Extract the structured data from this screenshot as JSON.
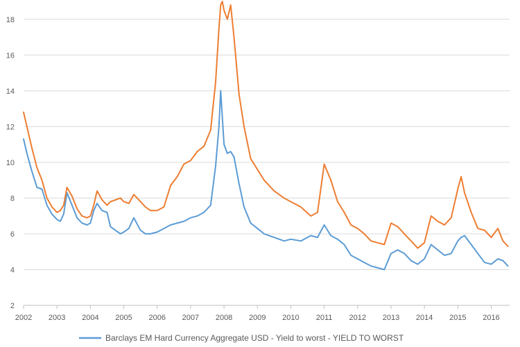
{
  "chart_data": {
    "type": "line",
    "title": "",
    "xlabel": "",
    "ylabel": "",
    "xlim": [
      2002,
      2016.55
    ],
    "ylim": [
      2,
      19
    ],
    "y_ticks": [
      2,
      4,
      6,
      8,
      10,
      12,
      14,
      16,
      18
    ],
    "x_ticks": [
      "2002",
      "2003",
      "2004",
      "2005",
      "2006",
      "2007",
      "2008",
      "2009",
      "2010",
      "2011",
      "2012",
      "2013",
      "2014",
      "2015",
      "2016"
    ],
    "grid": "horizontal",
    "legend_position": "bottom",
    "colors": {
      "blue": "#5b9bd5",
      "orange": "#ed7d31",
      "grid": "#d9d9d9",
      "axis": "#bfbfbf"
    },
    "series": [
      {
        "name": "Barclays EM Hard Currency  Aggregate USD - Yield to worst - YIELD TO WORST",
        "color": "#5b9bd5",
        "x": [
          2002.0,
          2002.1,
          2002.25,
          2002.4,
          2002.55,
          2002.7,
          2002.85,
          2003.0,
          2003.1,
          2003.2,
          2003.3,
          2003.45,
          2003.6,
          2003.75,
          2003.9,
          2004.0,
          2004.1,
          2004.2,
          2004.35,
          2004.5,
          2004.6,
          2004.75,
          2004.9,
          2005.0,
          2005.15,
          2005.3,
          2005.5,
          2005.65,
          2005.8,
          2006.0,
          2006.2,
          2006.4,
          2006.6,
          2006.8,
          2007.0,
          2007.2,
          2007.4,
          2007.6,
          2007.75,
          2007.85,
          2007.9,
          2007.95,
          2008.0,
          2008.1,
          2008.2,
          2008.3,
          2008.45,
          2008.6,
          2008.8,
          2009.0,
          2009.2,
          2009.5,
          2009.8,
          2010.0,
          2010.3,
          2010.6,
          2010.8,
          2011.0,
          2011.2,
          2011.4,
          2011.6,
          2011.8,
          2012.0,
          2012.2,
          2012.4,
          2012.6,
          2012.8,
          2013.0,
          2013.2,
          2013.4,
          2013.6,
          2013.8,
          2014.0,
          2014.2,
          2014.4,
          2014.6,
          2014.8,
          2015.0,
          2015.1,
          2015.2,
          2015.4,
          2015.6,
          2015.8,
          2016.0,
          2016.2,
          2016.35,
          2016.5
        ],
        "y": [
          11.3,
          10.5,
          9.5,
          8.6,
          8.5,
          7.6,
          7.1,
          6.8,
          6.7,
          7.1,
          8.3,
          7.6,
          6.9,
          6.6,
          6.5,
          6.6,
          7.3,
          7.7,
          7.3,
          7.2,
          6.4,
          6.2,
          6.0,
          6.1,
          6.3,
          6.9,
          6.2,
          6.0,
          6.0,
          6.1,
          6.3,
          6.5,
          6.6,
          6.7,
          6.9,
          7.0,
          7.2,
          7.6,
          9.8,
          12.0,
          14.0,
          12.5,
          11.0,
          10.5,
          10.6,
          10.3,
          8.8,
          7.5,
          6.6,
          6.3,
          6.0,
          5.8,
          5.6,
          5.7,
          5.6,
          5.9,
          5.8,
          6.5,
          5.9,
          5.7,
          5.4,
          4.8,
          4.6,
          4.4,
          4.2,
          4.1,
          4.0,
          4.9,
          5.1,
          4.9,
          4.5,
          4.3,
          4.6,
          5.4,
          5.1,
          4.8,
          4.9,
          5.6,
          5.8,
          5.9,
          5.4,
          4.9,
          4.4,
          4.3,
          4.6,
          4.5,
          4.2
        ]
      },
      {
        "name": "",
        "color": "#ed7d31",
        "x": [
          2002.0,
          2002.1,
          2002.25,
          2002.4,
          2002.55,
          2002.7,
          2002.85,
          2003.0,
          2003.1,
          2003.2,
          2003.3,
          2003.45,
          2003.6,
          2003.75,
          2003.9,
          2004.0,
          2004.1,
          2004.2,
          2004.35,
          2004.5,
          2004.6,
          2004.75,
          2004.9,
          2005.0,
          2005.15,
          2005.3,
          2005.5,
          2005.65,
          2005.8,
          2006.0,
          2006.2,
          2006.4,
          2006.6,
          2006.8,
          2007.0,
          2007.2,
          2007.4,
          2007.6,
          2007.75,
          2007.85,
          2007.9,
          2007.95,
          2008.0,
          2008.1,
          2008.2,
          2008.3,
          2008.45,
          2008.6,
          2008.8,
          2009.0,
          2009.2,
          2009.5,
          2009.8,
          2010.0,
          2010.3,
          2010.6,
          2010.8,
          2011.0,
          2011.2,
          2011.4,
          2011.6,
          2011.8,
          2012.0,
          2012.2,
          2012.4,
          2012.6,
          2012.8,
          2013.0,
          2013.2,
          2013.4,
          2013.6,
          2013.8,
          2014.0,
          2014.2,
          2014.4,
          2014.6,
          2014.8,
          2015.0,
          2015.1,
          2015.2,
          2015.4,
          2015.6,
          2015.8,
          2016.0,
          2016.2,
          2016.35,
          2016.5
        ],
        "y": [
          12.8,
          12.0,
          10.8,
          9.7,
          9.0,
          8.0,
          7.5,
          7.2,
          7.3,
          7.6,
          8.6,
          8.1,
          7.4,
          7.0,
          6.9,
          7.0,
          7.6,
          8.4,
          7.9,
          7.6,
          7.8,
          7.9,
          8.0,
          7.8,
          7.7,
          8.2,
          7.8,
          7.5,
          7.3,
          7.3,
          7.5,
          8.7,
          9.2,
          9.9,
          10.1,
          10.6,
          10.9,
          11.8,
          14.5,
          17.5,
          18.8,
          19.0,
          18.5,
          18.0,
          18.8,
          17.0,
          13.8,
          12.0,
          10.2,
          9.6,
          9.0,
          8.4,
          8.0,
          7.8,
          7.5,
          7.0,
          7.2,
          9.9,
          9.0,
          7.8,
          7.2,
          6.5,
          6.3,
          6.0,
          5.6,
          5.5,
          5.4,
          6.6,
          6.4,
          6.0,
          5.6,
          5.2,
          5.5,
          7.0,
          6.7,
          6.5,
          6.9,
          8.5,
          9.2,
          8.3,
          7.2,
          6.3,
          6.2,
          5.8,
          6.3,
          5.6,
          5.3
        ]
      }
    ]
  }
}
